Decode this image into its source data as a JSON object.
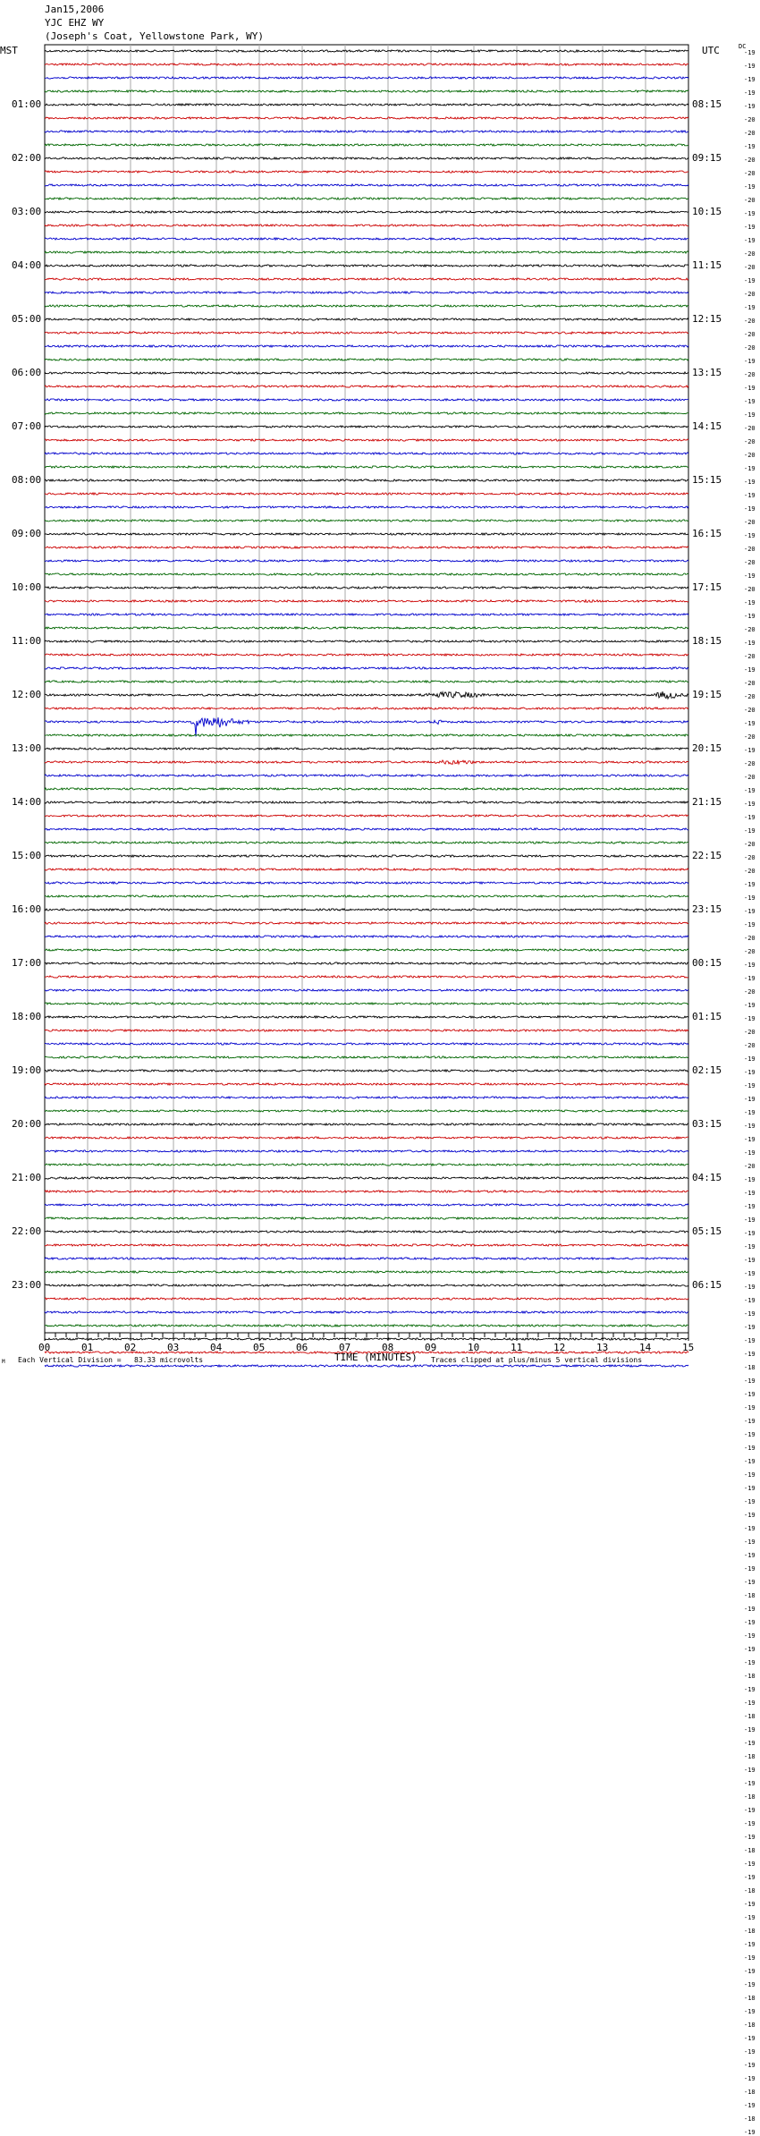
{
  "header": {
    "date": "Jan15,2006",
    "station": "YJC EHZ WY",
    "location": "(Joseph's Coat, Yellowstone Park, WY)"
  },
  "left_tz": "MST",
  "right_tz": "UTC",
  "dc_label": "DC",
  "footer": {
    "division": "Each Vertical Division =   83.33 microvolts",
    "clip": "Traces clipped at plus/minus 5 vertical divisions",
    "corner": "M"
  },
  "chart_data": {
    "type": "line",
    "title": "",
    "xlabel": "TIME (MINUTES)",
    "xlim": [
      0,
      15
    ],
    "x_ticks": [
      "00",
      "01",
      "02",
      "03",
      "04",
      "05",
      "06",
      "07",
      "08",
      "09",
      "10",
      "11",
      "12",
      "13",
      "14",
      "15"
    ],
    "trace_colors": [
      "#000000",
      "#cc0000",
      "#0000cc",
      "#006600"
    ],
    "left_hours": [
      "01:00",
      "02:00",
      "03:00",
      "04:00",
      "05:00",
      "06:00",
      "07:00",
      "08:00",
      "09:00",
      "10:00",
      "11:00",
      "12:00",
      "13:00",
      "14:00",
      "15:00",
      "16:00",
      "17:00",
      "18:00",
      "19:00",
      "20:00",
      "21:00",
      "22:00",
      "23:00"
    ],
    "right_hours": [
      "08:15",
      "09:15",
      "10:15",
      "11:15",
      "12:15",
      "13:15",
      "14:15",
      "15:15",
      "16:15",
      "17:15",
      "18:15",
      "19:15",
      "20:15",
      "21:15",
      "22:15",
      "23:15",
      "00:15",
      "01:15",
      "02:15",
      "03:15",
      "04:15",
      "05:15",
      "06:15"
    ],
    "dc_offsets": [
      "-19",
      "-19",
      "-19",
      "-19",
      "-19",
      "-20",
      "-20",
      "-19",
      "-20",
      "-20",
      "-19",
      "-20",
      "-19",
      "-19",
      "-19",
      "-20",
      "-20",
      "-19",
      "-20",
      "-19",
      "-20",
      "-20",
      "-20",
      "-19",
      "-20",
      "-19",
      "-19",
      "-19",
      "-20",
      "-20",
      "-20",
      "-19",
      "-19",
      "-19",
      "-19",
      "-20",
      "-19",
      "-20",
      "-20",
      "-19",
      "-20",
      "-19",
      "-19",
      "-20",
      "-19",
      "-20",
      "-19",
      "-20",
      "-20",
      "-20",
      "-19",
      "-20",
      "-19",
      "-20",
      "-20",
      "-19",
      "-19",
      "-19",
      "-19",
      "-20",
      "-20",
      "-20",
      "-19",
      "-19",
      "-19",
      "-19",
      "-20",
      "-20",
      "-19",
      "-19",
      "-20",
      "-19",
      "-19",
      "-20",
      "-20",
      "-19",
      "-19",
      "-19",
      "-19",
      "-19",
      "-19",
      "-19",
      "-19",
      "-20",
      "-19",
      "-19",
      "-19",
      "-19",
      "-19",
      "-19",
      "-19",
      "-19",
      "-19",
      "-19",
      "-19",
      "-19",
      "-19",
      "-19",
      "-18",
      "-19",
      "-19",
      "-19",
      "-19",
      "-19",
      "-19",
      "-19",
      "-19",
      "-19",
      "-19",
      "-19",
      "-19",
      "-19",
      "-19",
      "-19",
      "-19",
      "-18",
      "-19",
      "-19",
      "-19",
      "-19",
      "-19",
      "-18",
      "-19",
      "-19",
      "-18",
      "-19",
      "-19",
      "-18",
      "-19",
      "-19",
      "-18",
      "-19",
      "-19",
      "-19",
      "-18",
      "-19",
      "-19",
      "-18",
      "-19",
      "-19",
      "-18",
      "-19",
      "-19",
      "-19",
      "-19",
      "-18",
      "-19",
      "-18",
      "-19",
      "-19",
      "-19",
      "-19",
      "-18",
      "-19",
      "-18",
      "-19"
    ],
    "events": [
      {
        "row": 48,
        "start_min": 8.7,
        "end_min": 10.8,
        "amplitude_div": 1.2
      },
      {
        "row": 48,
        "start_min": 14.2,
        "end_min": 15.0,
        "amplitude_div": 1.5
      },
      {
        "row": 50,
        "start_min": 3.4,
        "end_min": 4.8,
        "amplitude_div": 2.2
      },
      {
        "row": 50,
        "start_min": 5.6,
        "end_min": 5.9,
        "amplitude_div": 0.6
      },
      {
        "row": 50,
        "start_min": 9.0,
        "end_min": 9.4,
        "amplitude_div": 0.9
      },
      {
        "row": 53,
        "start_min": 9.0,
        "end_min": 10.5,
        "amplitude_div": 0.9
      },
      {
        "row": 41,
        "start_min": 12.3,
        "end_min": 13.3,
        "amplitude_div": 0.5
      },
      {
        "row": 21,
        "start_min": 1.8,
        "end_min": 2.3,
        "amplitude_div": 0.6
      },
      {
        "row": 21,
        "start_min": 3.2,
        "end_min": 4.2,
        "amplitude_div": 0.5
      },
      {
        "row": 21,
        "start_min": 12.0,
        "end_min": 12.6,
        "amplitude_div": 0.5
      },
      {
        "row": 72,
        "start_min": 11.8,
        "end_min": 12.3,
        "amplitude_div": 0.5
      }
    ],
    "spikes": [
      {
        "row": 50,
        "minute": 3.52,
        "depth_div": 5.5
      }
    ]
  }
}
